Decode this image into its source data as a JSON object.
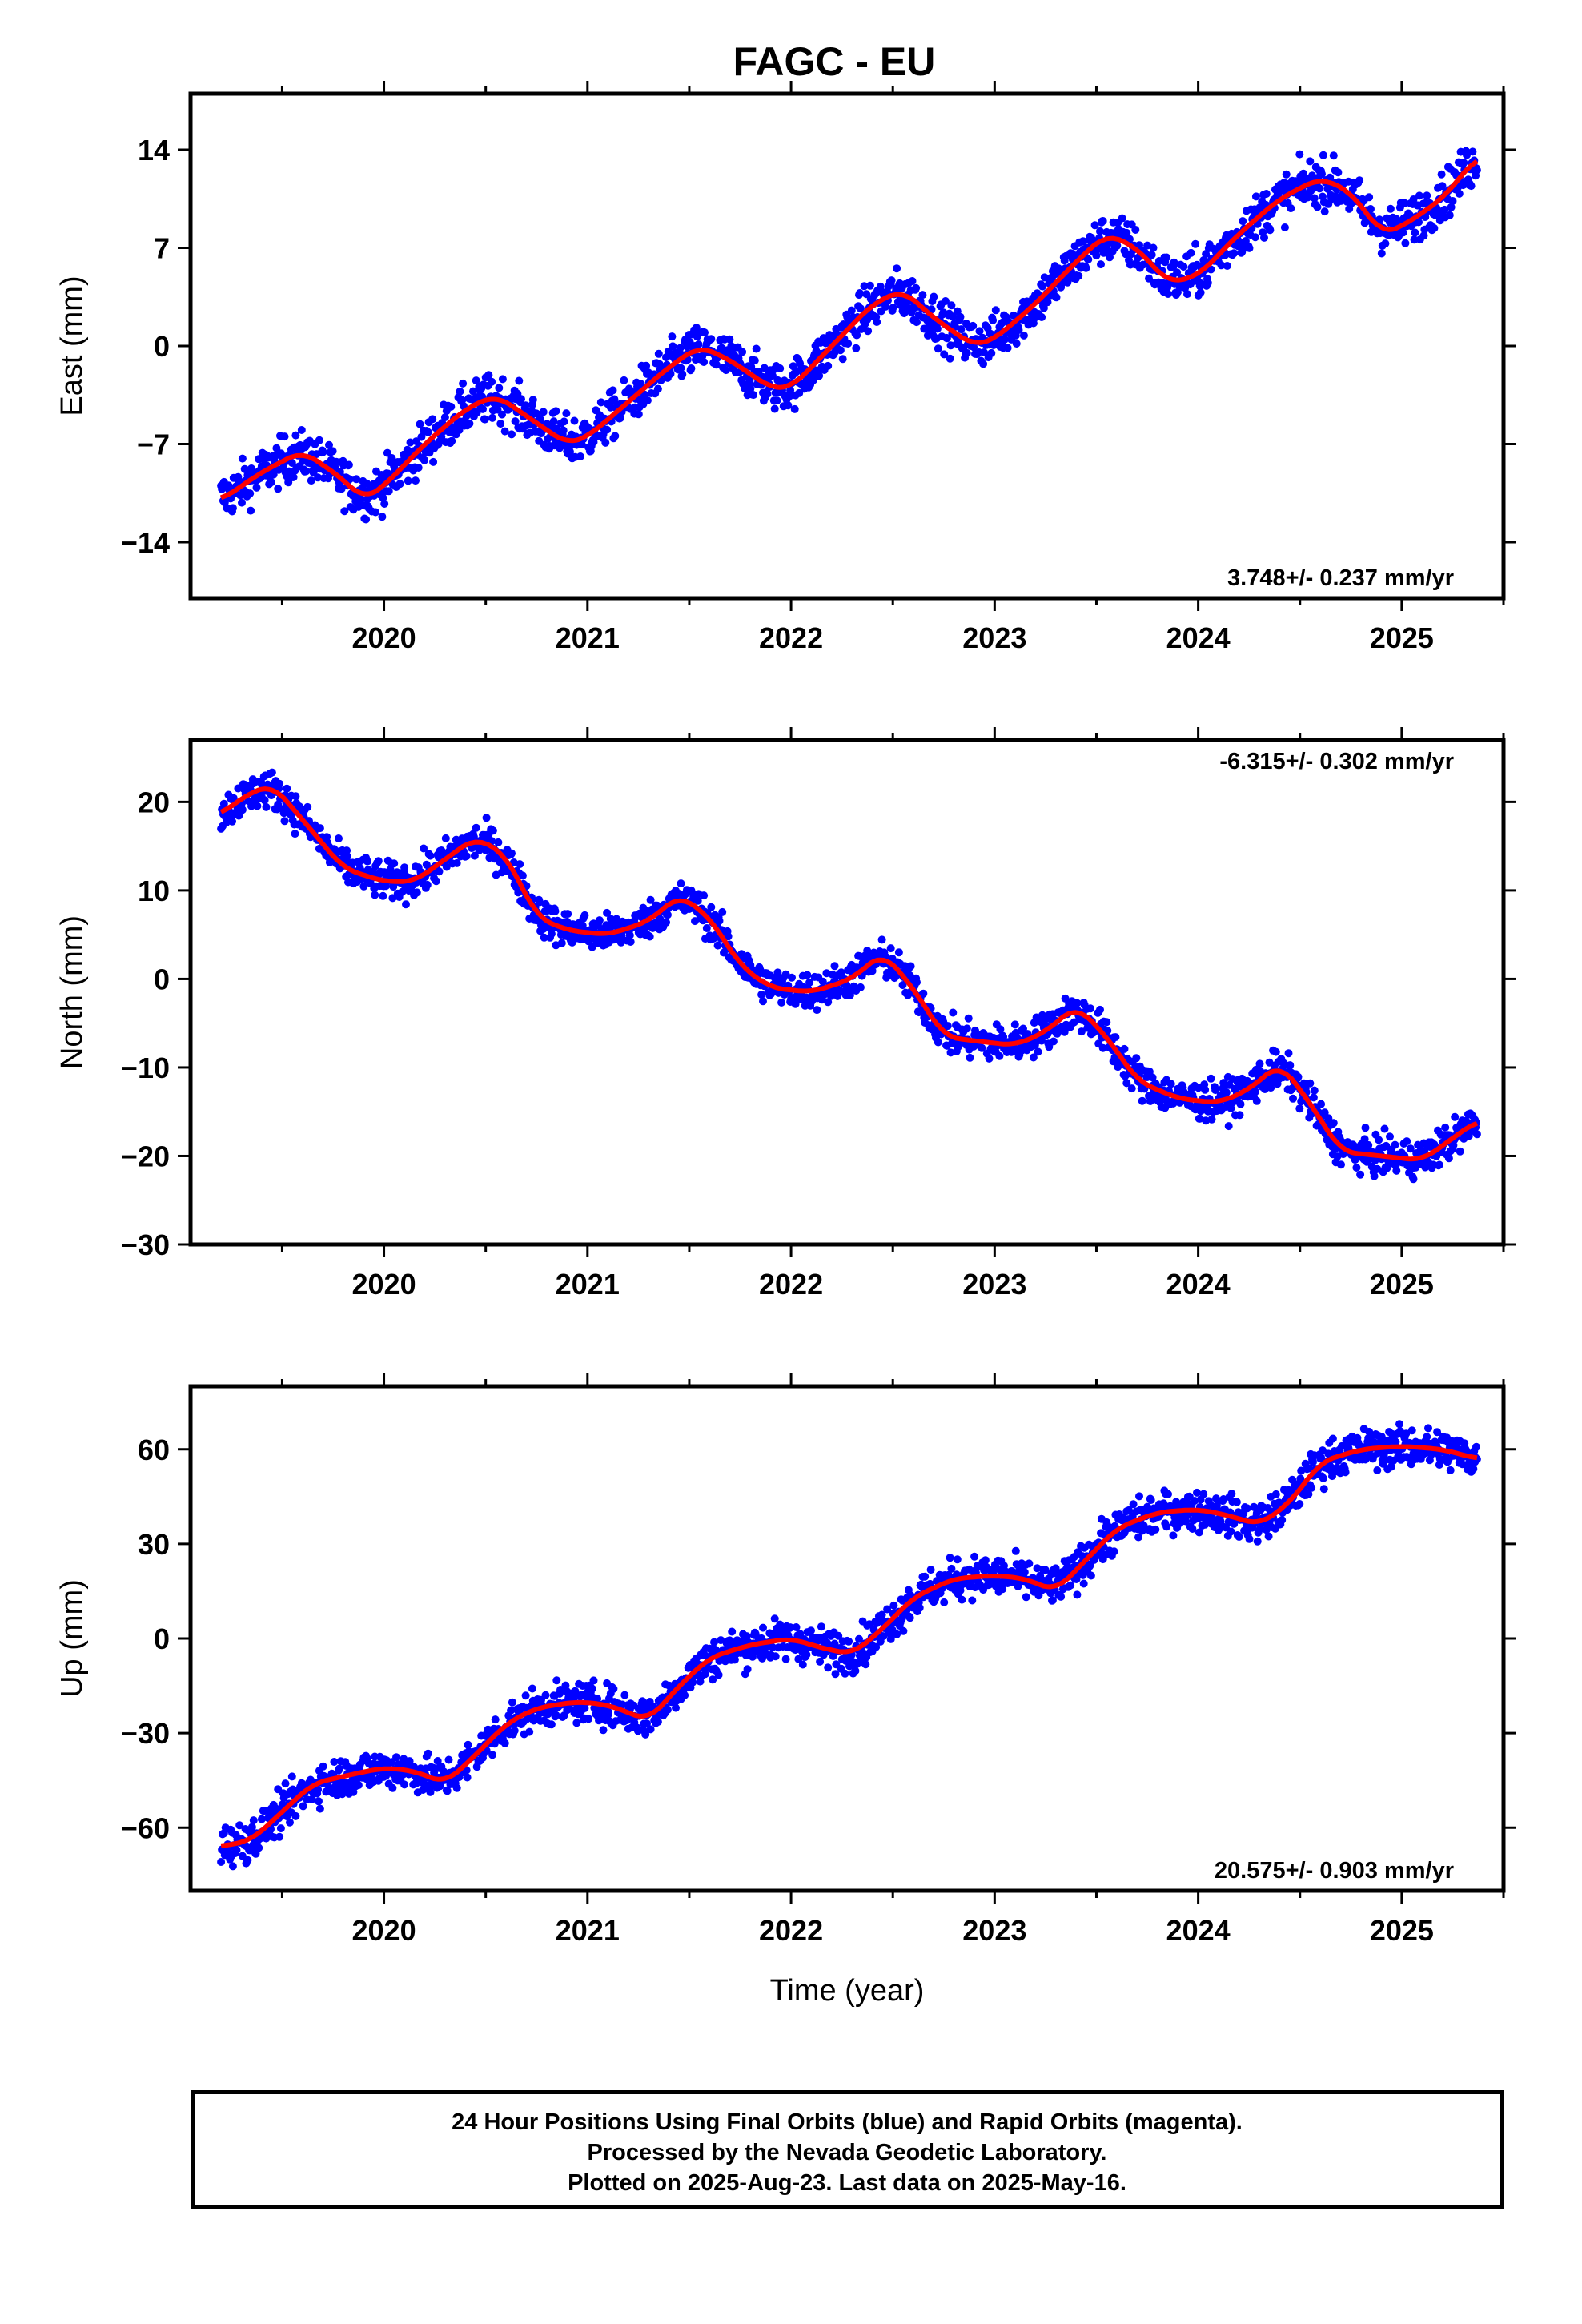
{
  "chart_title": "FAGC - EU",
  "chart_data": [
    {
      "type": "scatter",
      "component": "east",
      "ylabel": "East (mm)",
      "xlabel": "",
      "ylim": [
        -18,
        18
      ],
      "yticks": [
        -14,
        -7,
        0,
        7,
        14
      ],
      "xlim": [
        2019.05,
        2025.5
      ],
      "xticks": [
        2020,
        2021,
        2022,
        2023,
        2024,
        2025
      ],
      "grid": false,
      "rate_label": "3.748+/- 0.237 mm/yr",
      "rate_position": "bottom-right",
      "series": [
        {
          "name": "Final Orbits",
          "color": "#0000ff",
          "kind": "points",
          "noise": 1.2,
          "x": [
            2019.2,
            2019.4,
            2019.6,
            2019.8,
            2019.9,
            2020.0,
            2020.2,
            2020.4,
            2020.55,
            2020.7,
            2020.9,
            2021.0,
            2021.2,
            2021.4,
            2021.55,
            2021.7,
            2021.9,
            2022.0,
            2022.2,
            2022.4,
            2022.55,
            2022.7,
            2022.9,
            2023.0,
            2023.2,
            2023.4,
            2023.55,
            2023.7,
            2023.85,
            2024.0,
            2024.2,
            2024.4,
            2024.6,
            2024.75,
            2024.9,
            2025.0,
            2025.2,
            2025.37
          ],
          "y": [
            -11,
            -9,
            -7.5,
            -9.5,
            -11,
            -10,
            -7,
            -4.5,
            -3.5,
            -5,
            -7,
            -6.5,
            -4,
            -1.5,
            0,
            -1,
            -3,
            -3,
            0,
            3,
            4,
            2,
            0,
            0.5,
            3,
            6,
            8,
            7,
            4.5,
            5,
            8,
            10.5,
            12,
            11,
            8,
            8.5,
            10.5,
            13.5
          ]
        },
        {
          "name": "Trend",
          "color": "#ff0000",
          "kind": "line",
          "x": [
            2019.2,
            2019.4,
            2019.6,
            2019.8,
            2019.9,
            2020.0,
            2020.2,
            2020.4,
            2020.55,
            2020.7,
            2020.9,
            2021.0,
            2021.2,
            2021.4,
            2021.55,
            2021.7,
            2021.9,
            2022.0,
            2022.2,
            2022.4,
            2022.55,
            2022.7,
            2022.9,
            2023.0,
            2023.2,
            2023.4,
            2023.55,
            2023.7,
            2023.85,
            2024.0,
            2024.2,
            2024.4,
            2024.6,
            2024.75,
            2024.9,
            2025.0,
            2025.2,
            2025.37
          ],
          "y": [
            -11,
            -9,
            -7.5,
            -9.5,
            -11,
            -10,
            -7,
            -4.5,
            -3.5,
            -5,
            -7,
            -6.5,
            -4,
            -1.5,
            0,
            -1,
            -3,
            -3,
            0,
            3,
            4,
            2,
            0,
            0.5,
            3,
            6,
            8,
            7,
            4.5,
            5,
            8,
            10.5,
            12,
            11,
            8,
            8.5,
            10.5,
            13.5
          ]
        }
      ]
    },
    {
      "type": "scatter",
      "component": "north",
      "ylabel": "North (mm)",
      "xlabel": "",
      "ylim": [
        -30,
        27
      ],
      "yticks": [
        -30,
        -20,
        -10,
        0,
        10,
        20
      ],
      "xlim": [
        2019.05,
        2025.5
      ],
      "xticks": [
        2020,
        2021,
        2022,
        2023,
        2024,
        2025
      ],
      "grid": false,
      "rate_label": "-6.315+/- 0.302 mm/yr",
      "rate_position": "top-right",
      "series": [
        {
          "name": "Final Orbits",
          "color": "#0000ff",
          "kind": "points",
          "noise": 1.5,
          "x": [
            2019.2,
            2019.3,
            2019.45,
            2019.6,
            2019.8,
            2020.0,
            2020.15,
            2020.3,
            2020.45,
            2020.6,
            2020.75,
            2020.9,
            2021.1,
            2021.3,
            2021.45,
            2021.6,
            2021.75,
            2021.9,
            2022.1,
            2022.3,
            2022.45,
            2022.6,
            2022.75,
            2022.9,
            2023.1,
            2023.25,
            2023.4,
            2023.55,
            2023.7,
            2023.9,
            2024.1,
            2024.25,
            2024.4,
            2024.55,
            2024.7,
            2024.9,
            2025.1,
            2025.37
          ],
          "y": [
            18.5,
            20.5,
            22,
            18,
            12.5,
            11,
            11,
            13.5,
            16,
            14,
            7,
            5.5,
            5,
            6.5,
            9.5,
            7,
            1.5,
            -1,
            -1.5,
            0,
            3,
            -1,
            -6.5,
            -7,
            -7.5,
            -6,
            -3,
            -6.5,
            -11.5,
            -13.5,
            -14,
            -12.5,
            -9.5,
            -14,
            -19.5,
            -20,
            -20.5,
            -16
          ]
        },
        {
          "name": "Trend",
          "color": "#ff0000",
          "kind": "line",
          "x": [
            2019.2,
            2019.3,
            2019.45,
            2019.6,
            2019.8,
            2020.0,
            2020.15,
            2020.3,
            2020.45,
            2020.6,
            2020.75,
            2020.9,
            2021.1,
            2021.3,
            2021.45,
            2021.6,
            2021.75,
            2021.9,
            2022.1,
            2022.3,
            2022.45,
            2022.6,
            2022.75,
            2022.9,
            2023.1,
            2023.25,
            2023.4,
            2023.55,
            2023.7,
            2023.9,
            2024.1,
            2024.25,
            2024.4,
            2024.55,
            2024.7,
            2024.9,
            2025.1,
            2025.37
          ],
          "y": [
            18.5,
            20.5,
            22,
            18,
            12.5,
            11,
            11,
            13.5,
            16,
            14,
            7,
            5.5,
            5,
            6.5,
            9.5,
            7,
            1.5,
            -1,
            -1.5,
            0,
            3,
            -1,
            -6.5,
            -7,
            -7.5,
            -6,
            -3,
            -6.5,
            -11.5,
            -13.5,
            -14,
            -12.5,
            -9.5,
            -14,
            -19.5,
            -20,
            -20.5,
            -16
          ]
        }
      ]
    },
    {
      "type": "scatter",
      "component": "up",
      "ylabel": "Up (mm)",
      "xlabel": "Time (year)",
      "ylim": [
        -80,
        80
      ],
      "yticks": [
        -60,
        -30,
        0,
        30,
        60
      ],
      "xlim": [
        2019.05,
        2025.5
      ],
      "xticks": [
        2020,
        2021,
        2022,
        2023,
        2024,
        2025
      ],
      "grid": false,
      "rate_label": "20.575+/- 0.903 mm/yr",
      "rate_position": "bottom-right",
      "series": [
        {
          "name": "Final Orbits",
          "color": "#0000ff",
          "kind": "points",
          "noise": 4.5,
          "x": [
            2019.2,
            2019.35,
            2019.5,
            2019.65,
            2019.85,
            2020.0,
            2020.15,
            2020.3,
            2020.45,
            2020.6,
            2020.75,
            2020.95,
            2021.1,
            2021.3,
            2021.45,
            2021.6,
            2021.8,
            2022.0,
            2022.15,
            2022.3,
            2022.45,
            2022.6,
            2022.8,
            2023.0,
            2023.15,
            2023.3,
            2023.45,
            2023.6,
            2023.8,
            2024.0,
            2024.15,
            2024.3,
            2024.45,
            2024.6,
            2024.8,
            2025.0,
            2025.2,
            2025.37
          ],
          "y": [
            -66,
            -64,
            -55,
            -46,
            -43,
            -41,
            -42,
            -46,
            -37,
            -27,
            -22,
            -20,
            -21,
            -26,
            -15,
            -6,
            -2,
            0,
            -3,
            -5,
            3,
            13,
            19,
            20,
            19,
            15,
            25,
            35,
            40,
            41,
            39,
            36,
            43,
            56,
            60,
            61,
            60,
            57
          ]
        },
        {
          "name": "Trend",
          "color": "#ff0000",
          "kind": "line",
          "x": [
            2019.2,
            2019.35,
            2019.5,
            2019.65,
            2019.85,
            2020.0,
            2020.15,
            2020.3,
            2020.45,
            2020.6,
            2020.75,
            2020.95,
            2021.1,
            2021.3,
            2021.45,
            2021.6,
            2021.8,
            2022.0,
            2022.15,
            2022.3,
            2022.45,
            2022.6,
            2022.8,
            2023.0,
            2023.15,
            2023.3,
            2023.45,
            2023.6,
            2023.8,
            2024.0,
            2024.15,
            2024.3,
            2024.45,
            2024.6,
            2024.8,
            2025.0,
            2025.2,
            2025.37
          ],
          "y": [
            -66,
            -64,
            -55,
            -46,
            -43,
            -41,
            -42,
            -46,
            -37,
            -27,
            -22,
            -20,
            -21,
            -26,
            -15,
            -6,
            -2,
            0,
            -3,
            -5,
            3,
            13,
            19,
            20,
            19,
            15,
            25,
            35,
            40,
            41,
            39,
            36,
            43,
            56,
            60,
            61,
            60,
            57
          ]
        }
      ]
    }
  ],
  "caption": {
    "line1": "24 Hour Positions Using Final Orbits (blue) and Rapid Orbits (magenta).",
    "line2": "Processed by the Nevada Geodetic Laboratory.",
    "line3": "Plotted on 2025-Aug-23. Last data on 2025-May-16."
  }
}
